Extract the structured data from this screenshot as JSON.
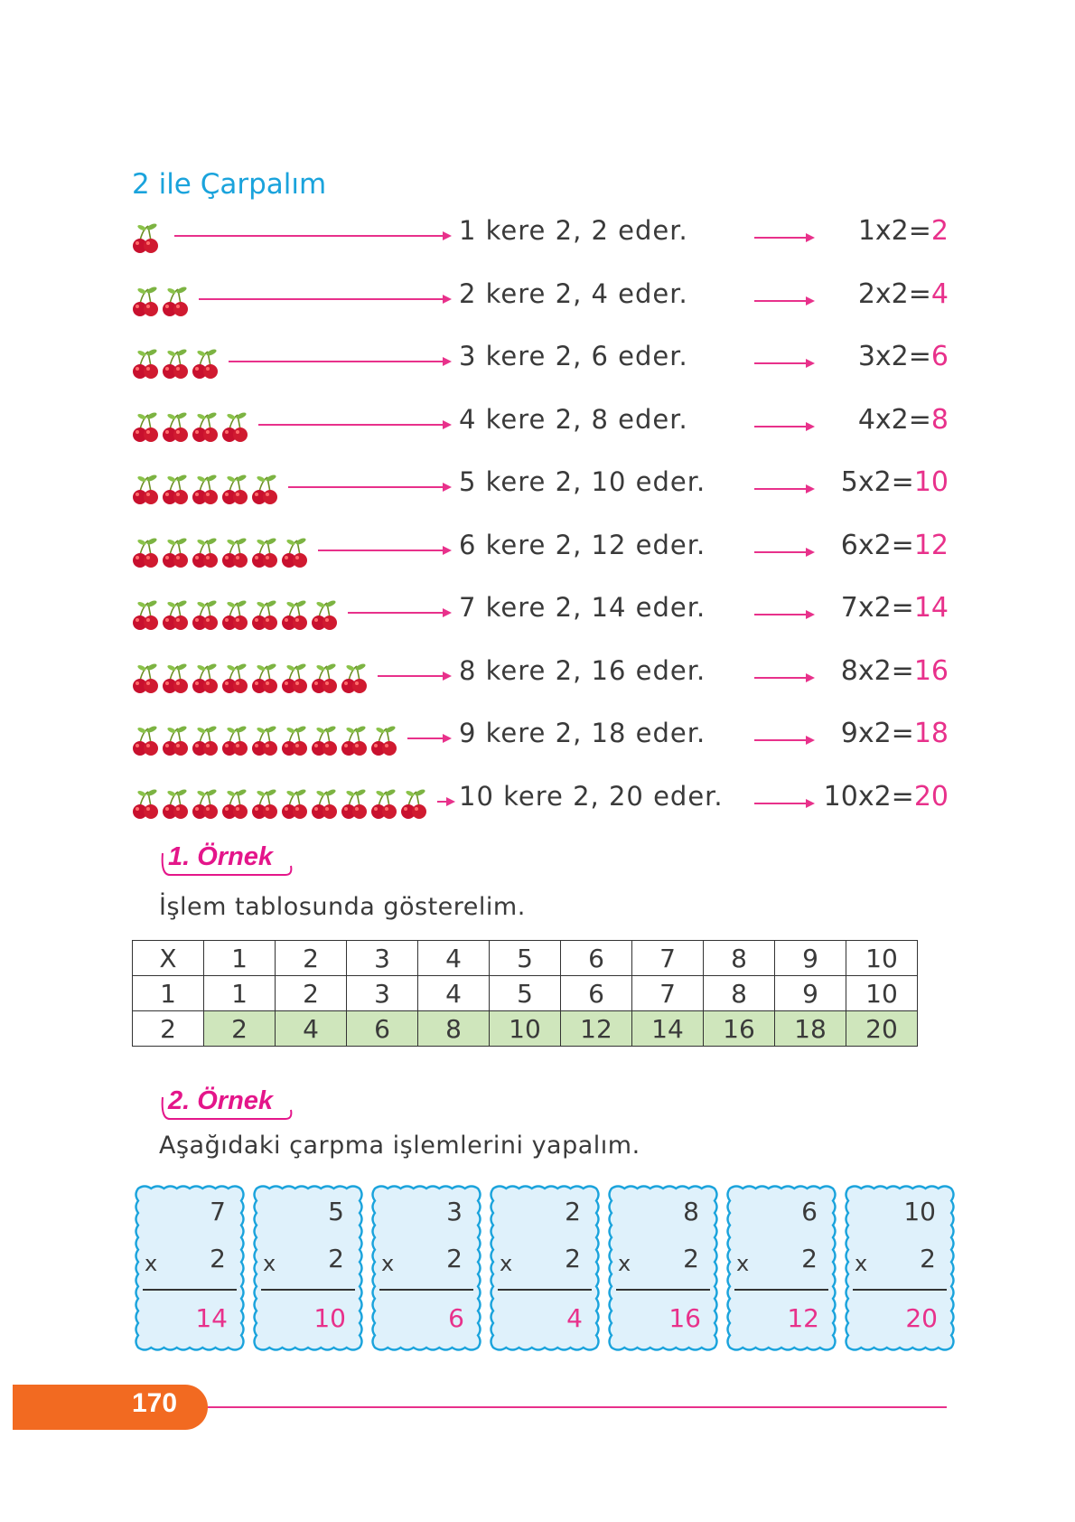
{
  "section_title": "2 ile Çarpalım",
  "rows": [
    {
      "count": 1,
      "sentence": "1 kere 2, 2 eder.",
      "eq_left": "1x2=",
      "eq_result": "2"
    },
    {
      "count": 2,
      "sentence": "2 kere 2, 4 eder.",
      "eq_left": "2x2=",
      "eq_result": "4"
    },
    {
      "count": 3,
      "sentence": "3 kere 2, 6 eder.",
      "eq_left": "3x2=",
      "eq_result": "6"
    },
    {
      "count": 4,
      "sentence": "4 kere 2, 8 eder.",
      "eq_left": "4x2=",
      "eq_result": "8"
    },
    {
      "count": 5,
      "sentence": "5 kere 2, 10 eder.",
      "eq_left": "5x2=",
      "eq_result": "10"
    },
    {
      "count": 6,
      "sentence": "6 kere 2, 12 eder.",
      "eq_left": "6x2=",
      "eq_result": "12"
    },
    {
      "count": 7,
      "sentence": "7 kere 2, 14 eder.",
      "eq_left": "7x2=",
      "eq_result": "14"
    },
    {
      "count": 8,
      "sentence": "8 kere 2, 16 eder.",
      "eq_left": "8x2=",
      "eq_result": "16"
    },
    {
      "count": 9,
      "sentence": "9 kere 2, 18 eder.",
      "eq_left": "9x2=",
      "eq_result": "18"
    },
    {
      "count": 10,
      "sentence": "10 kere 2, 20 eder.",
      "eq_left": "10x2=",
      "eq_result": "20"
    }
  ],
  "example1": {
    "heading": "1. Örnek",
    "instruction": "İşlem tablosunda gösterelim.",
    "table": [
      [
        "X",
        "1",
        "2",
        "3",
        "4",
        "5",
        "6",
        "7",
        "8",
        "9",
        "10"
      ],
      [
        "1",
        "1",
        "2",
        "3",
        "4",
        "5",
        "6",
        "7",
        "8",
        "9",
        "10"
      ],
      [
        "2",
        "2",
        "4",
        "6",
        "8",
        "10",
        "12",
        "14",
        "16",
        "18",
        "20"
      ]
    ]
  },
  "example2": {
    "heading": "2. Örnek",
    "instruction": "Aşağıdaki çarpma işlemlerini yapalım.",
    "operator": "x",
    "cards": [
      {
        "top": "7",
        "multiplier": "2",
        "result": "14"
      },
      {
        "top": "5",
        "multiplier": "2",
        "result": "10"
      },
      {
        "top": "3",
        "multiplier": "2",
        "result": "6"
      },
      {
        "top": "2",
        "multiplier": "2",
        "result": "4"
      },
      {
        "top": "8",
        "multiplier": "2",
        "result": "16"
      },
      {
        "top": "6",
        "multiplier": "2",
        "result": "12"
      },
      {
        "top": "10",
        "multiplier": "2",
        "result": "20"
      }
    ]
  },
  "page_number": "170",
  "colors": {
    "title": "#1aa3dc",
    "accent": "#e8318b",
    "table_highlight": "#cfe6bc",
    "card_fill": "#dff1fb",
    "card_border": "#1aa3dc",
    "footer": "#f26a21"
  }
}
